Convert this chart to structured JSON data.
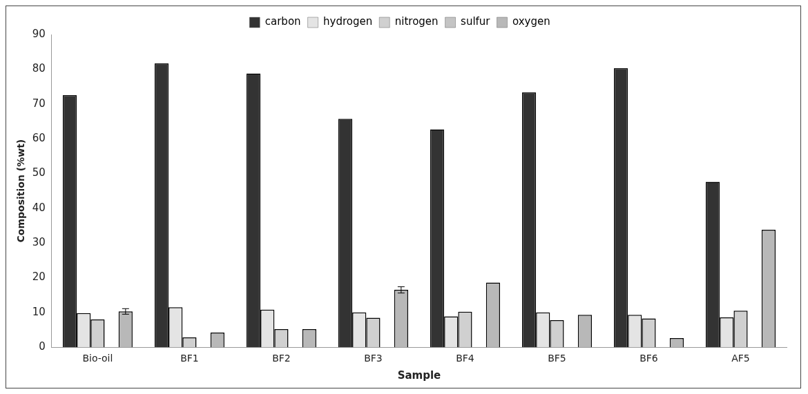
{
  "chart_data": {
    "type": "bar",
    "xlabel": "Sample",
    "ylabel": "Composition (%wt)",
    "categories": [
      "Bio-oil",
      "BF1",
      "BF2",
      "BF3",
      "BF4",
      "BF5",
      "BF6",
      "AF5"
    ],
    "series": [
      {
        "name": "carbon",
        "color": "#333333",
        "values": [
          72.5,
          81.7,
          78.8,
          65.7,
          62.7,
          73.3,
          80.3,
          47.6
        ]
      },
      {
        "name": "hydrogen",
        "color": "#e4e4e4",
        "values": [
          9.8,
          11.5,
          10.8,
          10,
          8.9,
          10,
          9.3,
          8.6
        ]
      },
      {
        "name": "nitrogen",
        "color": "#d0d0d0",
        "values": [
          8,
          2.8,
          5.2,
          8.5,
          10.2,
          7.8,
          8.3,
          10.5
        ]
      },
      {
        "name": "sulfur",
        "color": "#c4c4c4",
        "values": [
          0,
          0,
          0,
          0,
          0,
          0,
          0,
          0
        ]
      },
      {
        "name": "oxygen",
        "color": "#b8b8b8",
        "values": [
          10.3,
          4.2,
          5.2,
          16.5,
          18.6,
          9.3,
          2.6,
          33.8
        ],
        "errors": [
          0.8,
          null,
          null,
          0.9,
          null,
          null,
          null,
          null
        ]
      }
    ],
    "ylim": [
      0,
      90
    ],
    "yticks": [
      0,
      10,
      20,
      30,
      40,
      50,
      60,
      70,
      80,
      90
    ],
    "grid": false,
    "legend": "top"
  }
}
